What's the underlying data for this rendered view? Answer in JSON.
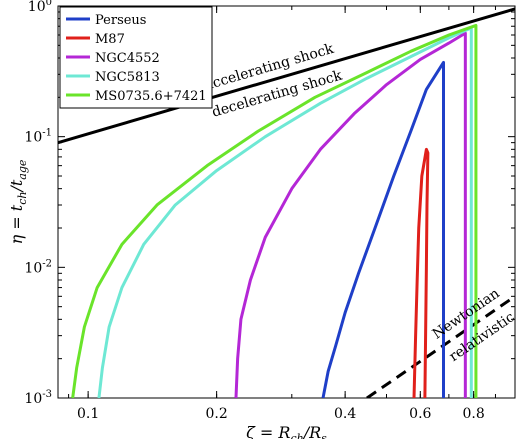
{
  "chart_data": {
    "type": "line",
    "x_scale": "log",
    "y_scale": "log",
    "xlim": [
      0.085,
      1.0
    ],
    "ylim": [
      0.001,
      1.0
    ],
    "xlabel_parts": [
      "ζ = R",
      "ch",
      "/R",
      "s"
    ],
    "ylabel_parts": [
      "η = t",
      "ch",
      "/t",
      "age"
    ],
    "x_ticks": [
      {
        "value": 0.1,
        "label": "0.1"
      },
      {
        "value": 0.2,
        "label": "0.2"
      },
      {
        "value": 0.4,
        "label": "0.4"
      },
      {
        "value": 0.6,
        "label": "0.6"
      },
      {
        "value": 0.8,
        "label": "0.8"
      }
    ],
    "y_ticks": [
      {
        "value": 0.001,
        "base": "10",
        "exp": "-3"
      },
      {
        "value": 0.01,
        "base": "10",
        "exp": "-2"
      },
      {
        "value": 0.1,
        "base": "10",
        "exp": "-1"
      },
      {
        "value": 1,
        "base": "10",
        "exp": "0"
      }
    ],
    "series": [
      {
        "name": "Perseus",
        "color": "#1f3fc8",
        "points": [
          [
            0.355,
            0.001
          ],
          [
            0.365,
            0.0016
          ],
          [
            0.38,
            0.0025
          ],
          [
            0.4,
            0.0045
          ],
          [
            0.43,
            0.009
          ],
          [
            0.47,
            0.02
          ],
          [
            0.52,
            0.05
          ],
          [
            0.57,
            0.11
          ],
          [
            0.62,
            0.23
          ],
          [
            0.68,
            0.37
          ],
          [
            0.68,
            0.001
          ]
        ]
      },
      {
        "name": "M87",
        "color": "#e0201b",
        "points": [
          [
            0.58,
            0.001
          ],
          [
            0.585,
            0.003
          ],
          [
            0.59,
            0.008
          ],
          [
            0.595,
            0.02
          ],
          [
            0.605,
            0.05
          ],
          [
            0.62,
            0.08
          ],
          [
            0.625,
            0.075
          ],
          [
            0.622,
            0.03
          ],
          [
            0.62,
            0.01
          ],
          [
            0.615,
            0.001
          ]
        ]
      },
      {
        "name": "NGC4552",
        "color": "#b427d6",
        "points": [
          [
            0.222,
            0.001
          ],
          [
            0.224,
            0.002
          ],
          [
            0.228,
            0.004
          ],
          [
            0.24,
            0.008
          ],
          [
            0.26,
            0.017
          ],
          [
            0.3,
            0.04
          ],
          [
            0.35,
            0.08
          ],
          [
            0.42,
            0.15
          ],
          [
            0.5,
            0.25
          ],
          [
            0.6,
            0.39
          ],
          [
            0.7,
            0.52
          ],
          [
            0.765,
            0.62
          ],
          [
            0.765,
            0.001
          ]
        ]
      },
      {
        "name": "NGC5813",
        "color": "#6ee8d4",
        "points": [
          [
            0.106,
            0.001
          ],
          [
            0.108,
            0.0017
          ],
          [
            0.112,
            0.0035
          ],
          [
            0.12,
            0.007
          ],
          [
            0.135,
            0.015
          ],
          [
            0.16,
            0.03
          ],
          [
            0.2,
            0.055
          ],
          [
            0.26,
            0.1
          ],
          [
            0.35,
            0.18
          ],
          [
            0.45,
            0.28
          ],
          [
            0.57,
            0.41
          ],
          [
            0.7,
            0.57
          ],
          [
            0.79,
            0.68
          ],
          [
            0.79,
            0.001
          ]
        ]
      },
      {
        "name": "MS0735.6+7421",
        "color": "#6ae42a",
        "points": [
          [
            0.092,
            0.001
          ],
          [
            0.094,
            0.0017
          ],
          [
            0.098,
            0.0035
          ],
          [
            0.105,
            0.007
          ],
          [
            0.12,
            0.015
          ],
          [
            0.145,
            0.03
          ],
          [
            0.19,
            0.06
          ],
          [
            0.25,
            0.11
          ],
          [
            0.34,
            0.2
          ],
          [
            0.45,
            0.31
          ],
          [
            0.57,
            0.45
          ],
          [
            0.7,
            0.6
          ],
          [
            0.81,
            0.71
          ],
          [
            0.81,
            0.001
          ]
        ]
      }
    ],
    "reference_lines": [
      {
        "id": "shock-line",
        "style": "solid",
        "color": "#000000",
        "points": [
          [
            0.085,
            0.09
          ],
          [
            1.0,
            0.95
          ]
        ],
        "label_above": "accelerating shock",
        "label_below": "decelerating shock"
      },
      {
        "id": "newtonian-line",
        "style": "dashed",
        "color": "#000000",
        "points": [
          [
            0.45,
            0.001
          ],
          [
            1.0,
            0.006
          ]
        ],
        "label_above": "Newtonian",
        "label_below": "relativistic"
      }
    ],
    "legend_position": "top-left",
    "grid": false
  }
}
